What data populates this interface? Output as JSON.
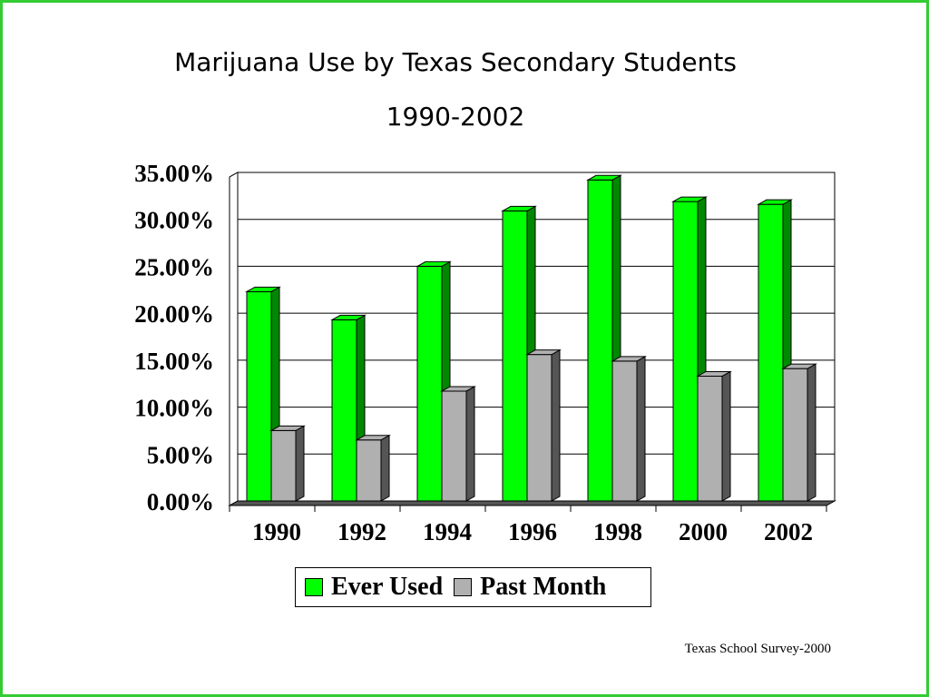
{
  "chart_data": {
    "type": "bar",
    "title": "Marijuana Use by Texas Secondary Students",
    "subtitle": "1990-2002",
    "categories": [
      "1990",
      "1992",
      "1994",
      "1996",
      "1998",
      "2000",
      "2002"
    ],
    "series": [
      {
        "name": "Ever Used",
        "values": [
          22.3,
          19.3,
          25.0,
          30.9,
          34.2,
          31.9,
          31.6
        ],
        "color": "#00ff00"
      },
      {
        "name": "Past Month",
        "values": [
          7.5,
          6.5,
          11.7,
          15.6,
          14.9,
          13.3,
          14.1
        ],
        "color": "#b0b0b0"
      }
    ],
    "ylim": [
      0,
      35
    ],
    "yticks": [
      "0.00%",
      "5.00%",
      "10.00%",
      "15.00%",
      "20.00%",
      "25.00%",
      "30.00%",
      "35.00%"
    ],
    "grid": true,
    "legend_position": "bottom",
    "style": "3d-bars"
  },
  "source_note": "Texas School Survey-2000",
  "colors": {
    "frame_border": "#33cc33",
    "ever_used_front": "#00ff00",
    "ever_used_side": "#008800",
    "past_month_front": "#b0b0b0",
    "past_month_side": "#555555"
  }
}
